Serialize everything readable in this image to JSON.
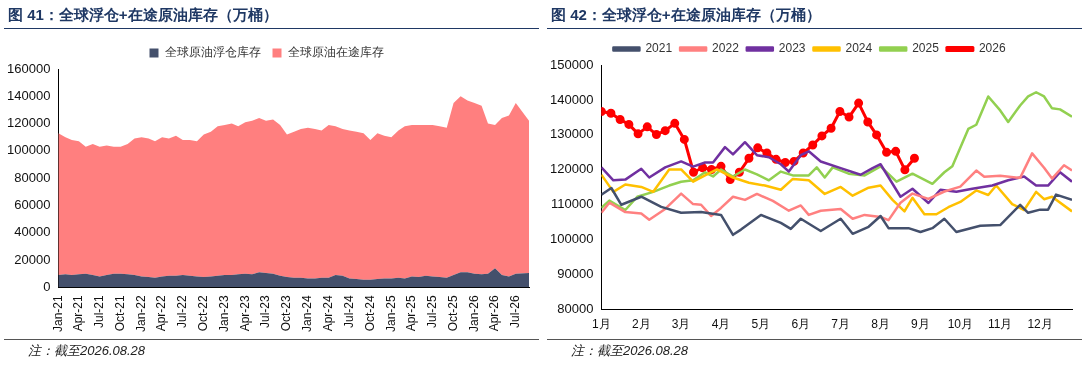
{
  "chart_data": [
    {
      "type": "area",
      "title": "图 41：全球浮仓+在途原油库存（万桶）",
      "stacked": true,
      "legend": "top",
      "grid": false,
      "annotations": [
        "注：截至2026.08.28"
      ],
      "x": [
        "2021-01",
        "2021-02",
        "2021-03",
        "2021-04",
        "2021-05",
        "2021-06",
        "2021-07",
        "2021-08",
        "2021-09",
        "2021-10",
        "2021-11",
        "2021-12",
        "2022-01",
        "2022-02",
        "2022-03",
        "2022-04",
        "2022-05",
        "2022-06",
        "2022-07",
        "2022-08",
        "2022-09",
        "2022-10",
        "2022-11",
        "2022-12",
        "2023-01",
        "2023-02",
        "2023-03",
        "2023-04",
        "2023-05",
        "2023-06",
        "2023-07",
        "2023-08",
        "2023-09",
        "2023-10",
        "2023-11",
        "2023-12",
        "2024-01",
        "2024-02",
        "2024-03",
        "2024-04",
        "2024-05",
        "2024-06",
        "2024-07",
        "2024-08",
        "2024-09",
        "2024-10",
        "2024-11",
        "2024-12",
        "2025-01",
        "2025-02",
        "2025-03",
        "2025-04",
        "2025-05",
        "2025-06",
        "2025-07",
        "2025-08",
        "2025-09",
        "2025-10",
        "2025-11",
        "2025-12",
        "2026-01",
        "2026-02",
        "2026-03",
        "2026-04",
        "2026-05",
        "2026-06",
        "2026-07",
        "2026-08-28"
      ],
      "xlim": [
        "2021-01",
        "2026-08-28"
      ],
      "xticks": [
        {
          "value": "2021-01",
          "label": "Jan-21"
        },
        {
          "value": "2021-04",
          "label": "Apr-21"
        },
        {
          "value": "2021-07",
          "label": "Jul-21"
        },
        {
          "value": "2021-10",
          "label": "Oct-21"
        },
        {
          "value": "2022-01",
          "label": "Jan-22"
        },
        {
          "value": "2022-04",
          "label": "Apr-22"
        },
        {
          "value": "2022-07",
          "label": "Jul-22"
        },
        {
          "value": "2022-10",
          "label": "Oct-22"
        },
        {
          "value": "2023-01",
          "label": "Jan-23"
        },
        {
          "value": "2023-04",
          "label": "Apr-23"
        },
        {
          "value": "2023-07",
          "label": "Jul-23"
        },
        {
          "value": "2023-10",
          "label": "Oct-23"
        },
        {
          "value": "2024-01",
          "label": "Jan-24"
        },
        {
          "value": "2024-04",
          "label": "Apr-24"
        },
        {
          "value": "2024-07",
          "label": "Jul-24"
        },
        {
          "value": "2024-10",
          "label": "Oct-24"
        },
        {
          "value": "2025-01",
          "label": "Jan-25"
        },
        {
          "value": "2025-04",
          "label": "Apr-25"
        },
        {
          "value": "2025-07",
          "label": "Jul-25"
        },
        {
          "value": "2025-10",
          "label": "Oct-25"
        },
        {
          "value": "2026-01",
          "label": "Jan-26"
        },
        {
          "value": "2026-04",
          "label": "Apr-26"
        },
        {
          "value": "2026-07",
          "label": "Jul-26"
        }
      ],
      "ylim": [
        0,
        160000
      ],
      "yticks": [
        0,
        20000,
        40000,
        60000,
        80000,
        100000,
        120000,
        140000,
        160000
      ],
      "series": [
        {
          "name": "全球原油浮仓库存",
          "color": "#44506c",
          "values": [
            9000,
            9500,
            9000,
            9500,
            10000,
            9000,
            8000,
            9000,
            10000,
            10000,
            9500,
            9000,
            8000,
            7500,
            7000,
            8000,
            8500,
            8500,
            9000,
            8500,
            8000,
            7500,
            8000,
            8500,
            9000,
            9000,
            9500,
            10000,
            9500,
            11000,
            10500,
            10000,
            8500,
            7500,
            7000,
            7000,
            6500,
            6500,
            7000,
            7000,
            9000,
            8500,
            6500,
            6000,
            5500,
            5500,
            6000,
            6500,
            6500,
            7000,
            6500,
            8000,
            7500,
            8500,
            8000,
            7500,
            7000,
            9000,
            11000,
            11000,
            10000,
            9500,
            10000,
            14000,
            9000,
            8000,
            10000,
            10500
          ]
        },
        {
          "name": "全球原油在途库存",
          "color": "#ff7f7f",
          "values": [
            104000,
            100500,
            99000,
            97500,
            93000,
            96000,
            95000,
            95000,
            93000,
            93000,
            95500,
            100000,
            102000,
            101500,
            100000,
            102000,
            100500,
            102500,
            99000,
            99500,
            99000,
            104500,
            106000,
            109500,
            110000,
            111000,
            108500,
            111000,
            112500,
            113000,
            111500,
            113000,
            110500,
            104500,
            107000,
            109000,
            110500,
            109500,
            108000,
            112000,
            109000,
            107500,
            108500,
            108000,
            107500,
            102500,
            107000,
            104500,
            103500,
            108000,
            111500,
            111000,
            111500,
            110500,
            111000,
            110500,
            110000,
            126000,
            129000,
            126000,
            125000,
            123500,
            110000,
            105000,
            115000,
            118000,
            125000,
            111500
          ]
        }
      ]
    },
    {
      "type": "line",
      "title": "图 42：全球浮仓+在途原油库存（万桶）",
      "legend": "top",
      "grid": false,
      "annotations": [
        "注：截至2026.08.28"
      ],
      "xlim": [
        1,
        12.8
      ],
      "xticks": [
        {
          "value": 1,
          "label": "1月"
        },
        {
          "value": 2,
          "label": "2月"
        },
        {
          "value": 3,
          "label": "3月"
        },
        {
          "value": 4,
          "label": "4月"
        },
        {
          "value": 5,
          "label": "5月"
        },
        {
          "value": 6,
          "label": "6月"
        },
        {
          "value": 7,
          "label": "7月"
        },
        {
          "value": 8,
          "label": "8月"
        },
        {
          "value": 9,
          "label": "9月"
        },
        {
          "value": 10,
          "label": "10月"
        },
        {
          "value": 11,
          "label": "11月"
        },
        {
          "value": 12,
          "label": "12月"
        }
      ],
      "ylim": [
        80000,
        150000
      ],
      "yticks": [
        80000,
        90000,
        100000,
        110000,
        120000,
        130000,
        140000,
        150000
      ],
      "series": [
        {
          "name": "2021",
          "color": "#44506c",
          "x": [
            1,
            1.25,
            1.5,
            2,
            2.5,
            3,
            3.5,
            4,
            4.3,
            4.5,
            5,
            5.5,
            5.75,
            6,
            6.5,
            7,
            7.3,
            7.7,
            8,
            8.2,
            8.7,
            9,
            9.3,
            9.6,
            9.9,
            10.5,
            11,
            11.5,
            11.7,
            12,
            12.2,
            12.4,
            12.8
          ],
          "values": [
            112900,
            114800,
            110000,
            112300,
            109400,
            107700,
            107900,
            107100,
            101400,
            102900,
            107100,
            104800,
            103100,
            106000,
            102500,
            106000,
            101700,
            103700,
            106800,
            103300,
            103300,
            102200,
            103300,
            106000,
            102200,
            104000,
            104200,
            110000,
            107700,
            108600,
            108600,
            112900,
            111400
          ]
        },
        {
          "name": "2022",
          "color": "#ff8080",
          "x": [
            1,
            1.2,
            1.6,
            2,
            2.2,
            2.6,
            3,
            3.3,
            3.5,
            3.75,
            4,
            4.3,
            4.6,
            4.9,
            5.3,
            5.7,
            6,
            6.2,
            6.5,
            7,
            7.3,
            7.6,
            8,
            8.2,
            8.5,
            8.8,
            9.2,
            9.6,
            10,
            10.4,
            10.6,
            11,
            11.5,
            11.8,
            12.1,
            12.3,
            12.6,
            12.8
          ],
          "values": [
            107700,
            110600,
            107900,
            107500,
            105700,
            108800,
            113200,
            110200,
            110000,
            106800,
            109100,
            112300,
            111400,
            113100,
            111100,
            108300,
            109800,
            107100,
            108300,
            108800,
            106000,
            107100,
            106500,
            105600,
            110600,
            113200,
            111700,
            113800,
            115200,
            119800,
            118000,
            118300,
            117700,
            124700,
            120600,
            117500,
            121300,
            119800
          ]
        },
        {
          "name": "2023",
          "color": "#7030a0",
          "x": [
            1,
            1.3,
            1.6,
            2,
            2.2,
            2.6,
            3,
            3.3,
            3.6,
            3.8,
            4.1,
            4.3,
            4.6,
            4.9,
            5.2,
            5.5,
            5.7,
            6,
            6.2,
            6.5,
            7,
            7.5,
            7.8,
            8,
            8.5,
            8.8,
            9.2,
            9.5,
            9.9,
            10.3,
            10.8,
            11.2,
            11.6,
            11.9,
            12.2,
            12.5,
            12.8
          ],
          "values": [
            120700,
            117000,
            117200,
            120300,
            117800,
            120700,
            122400,
            120900,
            122100,
            122100,
            126500,
            124400,
            127900,
            124200,
            123600,
            121600,
            119500,
            124200,
            125300,
            122400,
            120500,
            118600,
            120500,
            121600,
            112300,
            114600,
            110500,
            114300,
            113700,
            114600,
            115500,
            117000,
            118100,
            115500,
            115500,
            119300,
            116600
          ]
        },
        {
          "name": "2024",
          "color": "#ffc000",
          "x": [
            1,
            1.3,
            1.6,
            2,
            2.3,
            2.7,
            3,
            3.3,
            3.6,
            3.9,
            4.3,
            4.7,
            5.1,
            5.5,
            5.8,
            6.2,
            6.6,
            7,
            7.3,
            7.7,
            8,
            8.3,
            8.6,
            8.8,
            9.1,
            9.4,
            9.7,
            10,
            10.4,
            10.7,
            10.9,
            11.3,
            11.6,
            11.9,
            12.1,
            12.3,
            12.8
          ],
          "values": [
            118600,
            113700,
            115800,
            115100,
            113700,
            120100,
            120100,
            116600,
            118400,
            120100,
            117800,
            116300,
            115500,
            114300,
            117400,
            117000,
            113100,
            115100,
            112600,
            114900,
            115500,
            111400,
            108100,
            112000,
            107300,
            107300,
            109300,
            110800,
            114100,
            112800,
            115500,
            110200,
            108500,
            113700,
            111600,
            112300,
            108100
          ]
        },
        {
          "name": "2025",
          "color": "#92d050",
          "x": [
            1,
            1.2,
            1.6,
            1.9,
            2.3,
            2.7,
            3,
            3.3,
            3.6,
            3.8,
            4,
            4.3,
            4.6,
            4.9,
            5.2,
            5.5,
            5.8,
            6.2,
            6.4,
            6.6,
            6.8,
            7.2,
            7.6,
            8,
            8.4,
            8.8,
            9.3,
            9.6,
            9.8,
            10.2,
            10.4,
            10.7,
            11,
            11.2,
            11.5,
            11.7,
            11.9,
            12.1,
            12.3,
            12.5,
            12.8
          ],
          "values": [
            109100,
            111200,
            108500,
            112300,
            113700,
            115500,
            116600,
            117000,
            119300,
            118100,
            120100,
            118100,
            120100,
            118700,
            117000,
            119500,
            118400,
            118400,
            120700,
            117800,
            120700,
            118900,
            118400,
            121000,
            116600,
            118900,
            116000,
            119300,
            121000,
            131700,
            132900,
            141000,
            137000,
            133700,
            138400,
            141000,
            142200,
            141000,
            137600,
            137300,
            135200
          ]
        },
        {
          "name": "2026",
          "color": "#ff0000",
          "marker": "circle",
          "x": [
            1,
            1.24,
            1.47,
            1.69,
            1.92,
            2.15,
            2.38,
            2.6,
            2.84,
            3.08,
            3.31,
            3.54,
            3.76,
            4,
            4.23,
            4.46,
            4.7,
            4.92,
            5.15,
            5.38,
            5.61,
            5.83,
            6.06,
            6.3,
            6.53,
            6.76,
            6.98,
            7.21,
            7.45,
            7.68,
            7.9,
            8.15,
            8.38,
            8.61,
            8.85
          ],
          "values": [
            136700,
            136200,
            134400,
            133000,
            130300,
            132300,
            130100,
            131200,
            133300,
            128700,
            119300,
            120600,
            120100,
            121000,
            117200,
            119300,
            123300,
            126300,
            124800,
            123000,
            122100,
            122400,
            124800,
            127100,
            129700,
            131900,
            136700,
            135100,
            139100,
            133700,
            130000,
            125000,
            125300,
            120000,
            123300
          ]
        }
      ]
    }
  ]
}
